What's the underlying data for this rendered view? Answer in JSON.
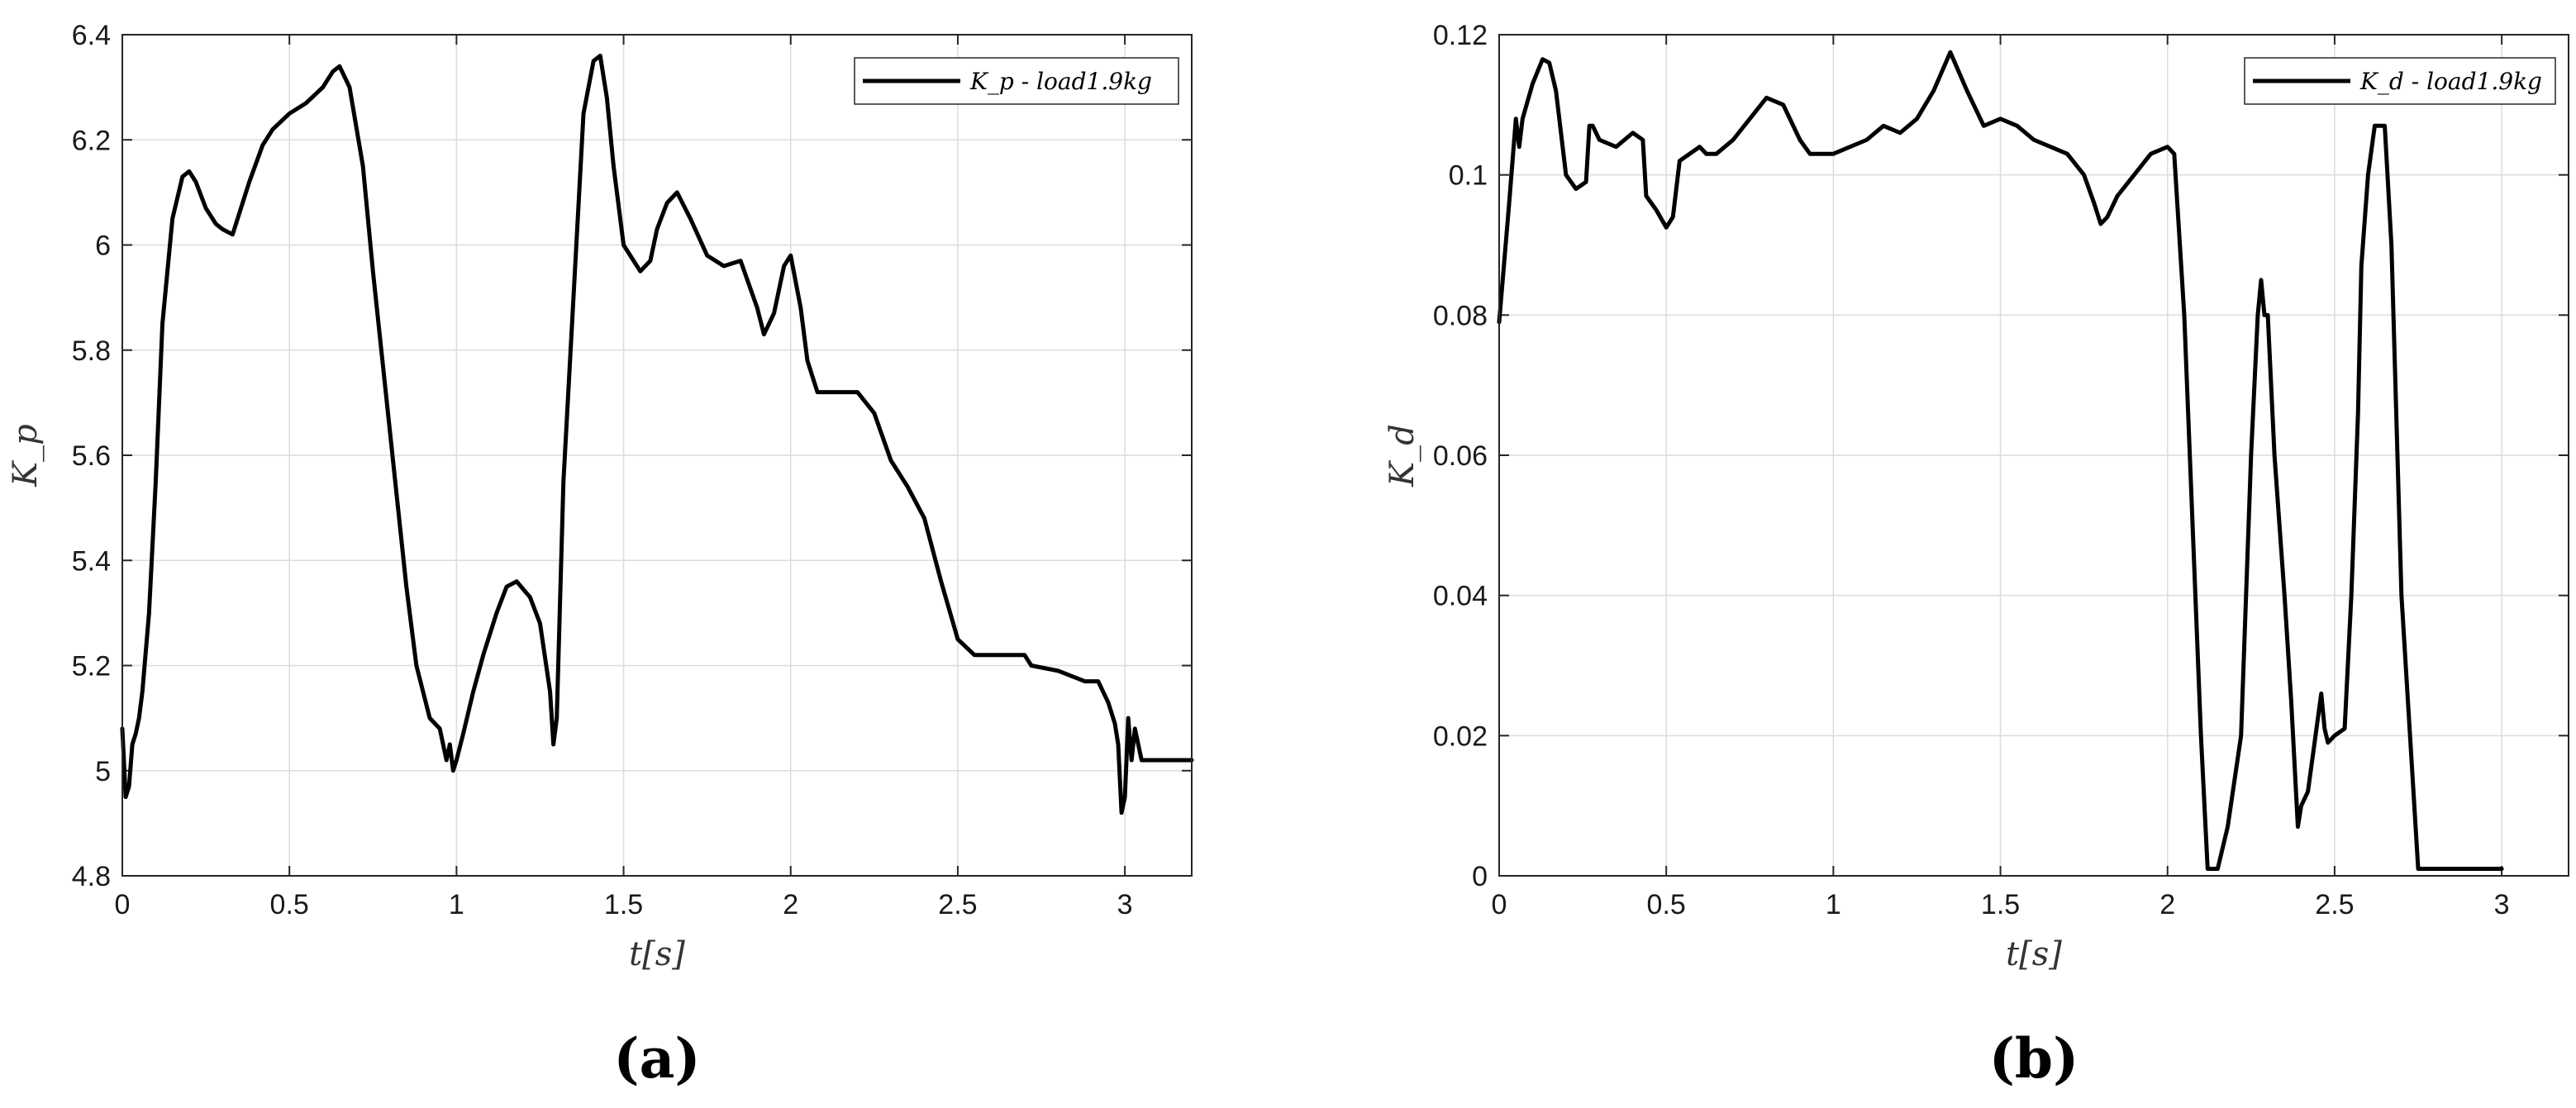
{
  "chart_data": [
    {
      "type": "line",
      "panel": "(a)",
      "xlabel": "t[s]",
      "ylabel": "K_p",
      "xlim": [
        0,
        3.2
      ],
      "ylim": [
        4.8,
        6.4
      ],
      "xticks": [
        "0",
        "0.5",
        "1",
        "1.5",
        "2",
        "2.5",
        "3"
      ],
      "yticks": [
        "4.8",
        "5",
        "5.2",
        "5.4",
        "5.6",
        "5.8",
        "6",
        "6.2",
        "6.4"
      ],
      "grid": true,
      "legend_position": "top-right",
      "series": [
        {
          "name": "K_p - load1.9kg",
          "x": [
            0,
            0.01,
            0.02,
            0.03,
            0.04,
            0.05,
            0.06,
            0.08,
            0.1,
            0.12,
            0.15,
            0.18,
            0.2,
            0.22,
            0.25,
            0.28,
            0.3,
            0.33,
            0.35,
            0.38,
            0.42,
            0.45,
            0.5,
            0.55,
            0.6,
            0.63,
            0.65,
            0.68,
            0.72,
            0.75,
            0.8,
            0.85,
            0.88,
            0.9,
            0.92,
            0.95,
            0.97,
            0.98,
            0.99,
            1.0,
            1.02,
            1.05,
            1.08,
            1.12,
            1.15,
            1.18,
            1.22,
            1.25,
            1.28,
            1.29,
            1.3,
            1.32,
            1.35,
            1.38,
            1.41,
            1.43,
            1.45,
            1.47,
            1.5,
            1.55,
            1.58,
            1.6,
            1.63,
            1.66,
            1.7,
            1.75,
            1.8,
            1.85,
            1.9,
            1.92,
            1.95,
            1.98,
            2.0,
            2.03,
            2.05,
            2.08,
            2.1,
            2.2,
            2.25,
            2.3,
            2.35,
            2.4,
            2.45,
            2.5,
            2.55,
            2.7,
            2.72,
            2.8,
            2.88,
            2.92,
            2.95,
            2.97,
            2.98,
            2.99,
            3.0,
            3.01,
            3.02,
            3.03,
            3.05,
            3.2
          ],
          "y": [
            5.08,
            4.95,
            4.97,
            5.05,
            5.07,
            5.1,
            5.15,
            5.3,
            5.55,
            5.85,
            6.05,
            6.13,
            6.14,
            6.12,
            6.07,
            6.04,
            6.03,
            6.02,
            6.06,
            6.12,
            6.19,
            6.22,
            6.25,
            6.27,
            6.3,
            6.33,
            6.34,
            6.3,
            6.15,
            5.95,
            5.65,
            5.35,
            5.2,
            5.15,
            5.1,
            5.08,
            5.02,
            5.05,
            5.0,
            5.02,
            5.07,
            5.15,
            5.22,
            5.3,
            5.35,
            5.36,
            5.33,
            5.28,
            5.15,
            5.05,
            5.1,
            5.55,
            5.9,
            6.25,
            6.35,
            6.36,
            6.28,
            6.15,
            6.0,
            5.95,
            5.97,
            6.03,
            6.08,
            6.1,
            6.05,
            5.98,
            5.96,
            5.97,
            5.88,
            5.83,
            5.87,
            5.96,
            5.98,
            5.88,
            5.78,
            5.72,
            5.72,
            5.72,
            5.68,
            5.59,
            5.54,
            5.48,
            5.36,
            5.25,
            5.22,
            5.22,
            5.2,
            5.19,
            5.17,
            5.17,
            5.13,
            5.09,
            5.05,
            4.92,
            4.95,
            5.1,
            5.02,
            5.08,
            5.02,
            5.02
          ]
        }
      ]
    },
    {
      "type": "line",
      "panel": "(b)",
      "xlabel": "t[s]",
      "ylabel": "K_d",
      "xlim": [
        0,
        3.2
      ],
      "ylim": [
        0,
        0.12
      ],
      "xticks": [
        "0",
        "0.5",
        "1",
        "1.5",
        "2",
        "2.5",
        "3"
      ],
      "yticks": [
        "0",
        "0.02",
        "0.04",
        "0.06",
        "0.08",
        "0.1",
        "0.12"
      ],
      "grid": true,
      "legend_position": "top-right",
      "series": [
        {
          "name": "K_d - load1.9kg",
          "x": [
            0,
            0.03,
            0.05,
            0.06,
            0.07,
            0.1,
            0.13,
            0.15,
            0.17,
            0.19,
            0.2,
            0.23,
            0.26,
            0.27,
            0.28,
            0.3,
            0.35,
            0.4,
            0.43,
            0.44,
            0.47,
            0.5,
            0.52,
            0.54,
            0.6,
            0.62,
            0.65,
            0.7,
            0.75,
            0.8,
            0.85,
            0.9,
            0.93,
            0.95,
            1.0,
            1.05,
            1.1,
            1.15,
            1.2,
            1.25,
            1.3,
            1.35,
            1.4,
            1.45,
            1.5,
            1.55,
            1.6,
            1.65,
            1.7,
            1.75,
            1.78,
            1.8,
            1.82,
            1.85,
            1.9,
            1.95,
            2.0,
            2.02,
            2.05,
            2.1,
            2.12,
            2.15,
            2.18,
            2.22,
            2.25,
            2.27,
            2.28,
            2.29,
            2.3,
            2.32,
            2.35,
            2.37,
            2.39,
            2.4,
            2.42,
            2.44,
            2.46,
            2.47,
            2.48,
            2.5,
            2.53,
            2.55,
            2.57,
            2.58,
            2.6,
            2.62,
            2.65,
            2.67,
            2.7,
            2.75,
            3.0
          ],
          "y": [
            0.079,
            0.096,
            0.108,
            0.104,
            0.108,
            0.113,
            0.1165,
            0.116,
            0.112,
            0.104,
            0.1,
            0.098,
            0.099,
            0.107,
            0.107,
            0.105,
            0.104,
            0.106,
            0.105,
            0.097,
            0.095,
            0.0925,
            0.094,
            0.102,
            0.104,
            0.103,
            0.103,
            0.105,
            0.108,
            0.111,
            0.11,
            0.105,
            0.103,
            0.103,
            0.103,
            0.104,
            0.105,
            0.107,
            0.106,
            0.108,
            0.112,
            0.1175,
            0.112,
            0.107,
            0.108,
            0.107,
            0.105,
            0.104,
            0.103,
            0.1,
            0.096,
            0.093,
            0.094,
            0.097,
            0.1,
            0.103,
            0.104,
            0.103,
            0.08,
            0.02,
            0.001,
            0.001,
            0.007,
            0.02,
            0.06,
            0.08,
            0.085,
            0.08,
            0.08,
            0.06,
            0.04,
            0.025,
            0.007,
            0.01,
            0.012,
            0.019,
            0.026,
            0.021,
            0.019,
            0.02,
            0.021,
            0.04,
            0.066,
            0.087,
            0.1,
            0.107,
            0.107,
            0.09,
            0.04,
            0.001,
            0.001
          ]
        }
      ]
    }
  ]
}
